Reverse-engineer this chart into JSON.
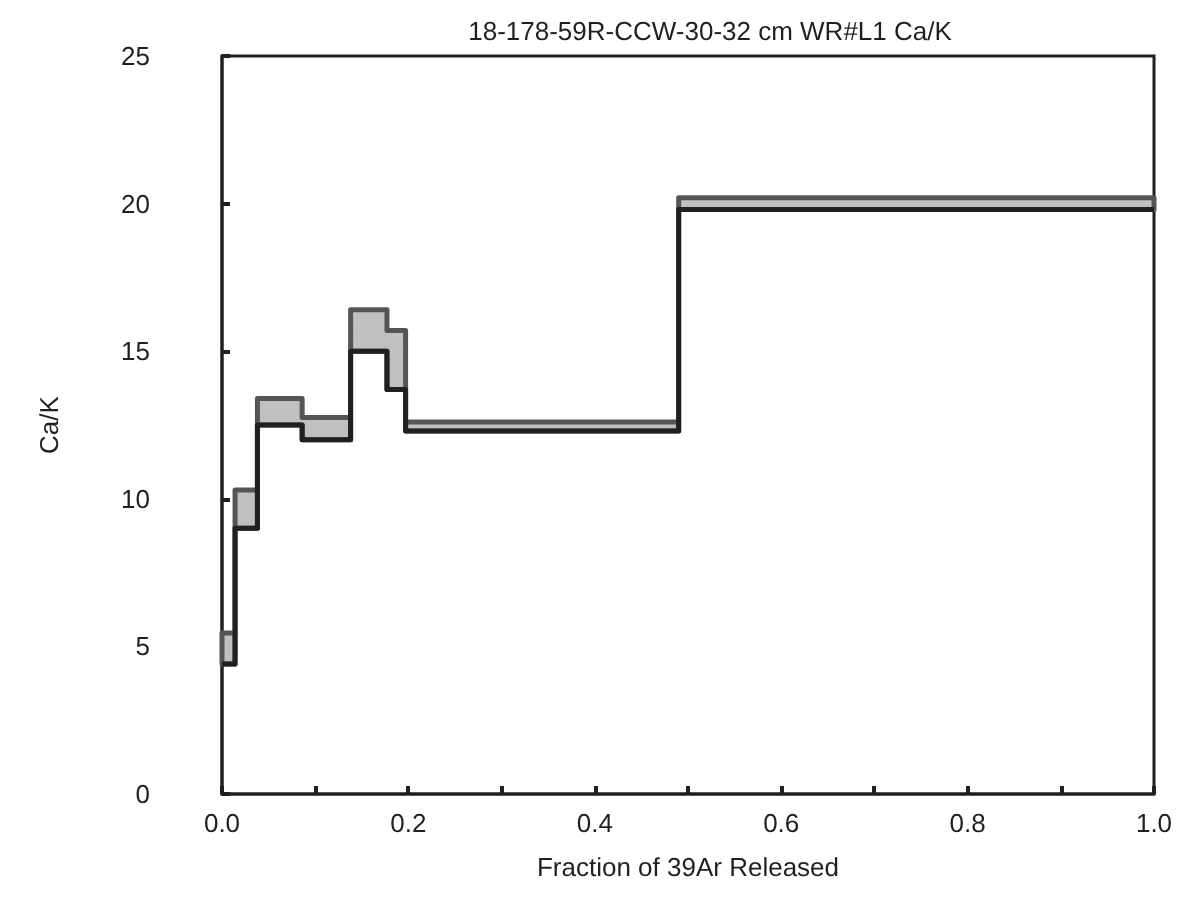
{
  "chart_data": {
    "type": "line",
    "title": "18-178-59R-CCW-30-32 cm WR#L1 Ca/K",
    "xlabel": "Fraction of 39Ar Released",
    "ylabel": "Ca/K",
    "x": [
      0,
      0.014,
      0.014,
      0.038,
      0.038,
      0.086,
      0.086,
      0.138,
      0.138,
      0.177,
      0.177,
      0.197,
      0.197,
      0.49,
      0.49,
      1.0
    ],
    "series": [
      {
        "color": "#231f20",
        "values": [
          4.4,
          4.4,
          9.0,
          9.0,
          12.5,
          12.5,
          12.0,
          12.0,
          15.0,
          15.0,
          13.7,
          13.7,
          12.3,
          12.3,
          19.8,
          19.8
        ],
        "lower": [
          4.4,
          4.4,
          9.0,
          9.0,
          12.5,
          12.5,
          12.0,
          12.0,
          15.0,
          15.0,
          13.7,
          13.7,
          12.3,
          12.3,
          19.8,
          19.8
        ],
        "upper": [
          5.45,
          5.45,
          10.3,
          10.3,
          13.4,
          13.4,
          12.75,
          12.75,
          16.4,
          16.4,
          15.7,
          15.7,
          12.6,
          12.6,
          20.2,
          20.2
        ]
      }
    ],
    "xlim": [
      0,
      1
    ],
    "xticks": [
      {
        "value": 0,
        "label": "0.0"
      },
      {
        "value": 0.1,
        "label": null
      },
      {
        "value": 0.2,
        "label": "0.2"
      },
      {
        "value": 0.3,
        "label": null
      },
      {
        "value": 0.4,
        "label": "0.4"
      },
      {
        "value": 0.5,
        "label": null
      },
      {
        "value": 0.6,
        "label": "0.6"
      },
      {
        "value": 0.7,
        "label": null
      },
      {
        "value": 0.8,
        "label": "0.8"
      },
      {
        "value": 0.9,
        "label": null
      },
      {
        "value": 1,
        "label": "1.0"
      }
    ],
    "ylim": [
      0,
      25
    ],
    "yticks": [
      0,
      5,
      10,
      15,
      20,
      25
    ],
    "grid": false
  }
}
